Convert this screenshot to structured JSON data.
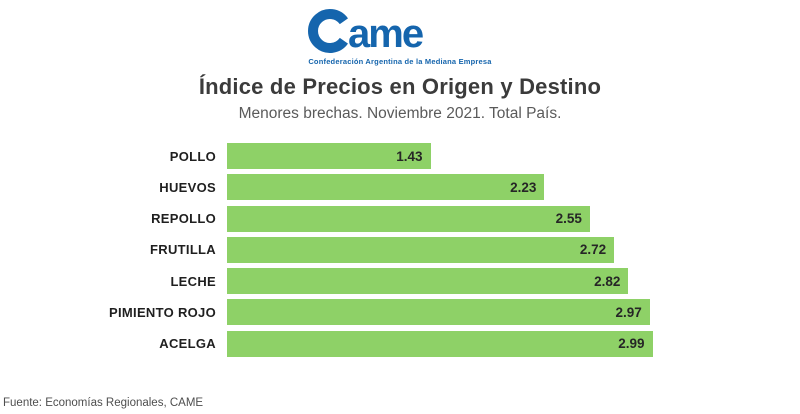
{
  "logo": {
    "wordmark": "Came",
    "wordmark_tail": "ame",
    "tagline": "Confederación Argentina de la Mediana Empresa",
    "color": "#1565ad"
  },
  "header": {
    "title": "Índice de Precios en Origen y Destino",
    "subtitle": "Menores brechas. Noviembre 2021. Total País."
  },
  "footer": {
    "source": "Fuente: Economías Regionales, CAME"
  },
  "chart_data": {
    "type": "bar",
    "orientation": "horizontal",
    "title": "Índice de Precios en Origen y Destino",
    "subtitle": "Menores brechas. Noviembre 2021. Total País.",
    "categories": [
      "POLLO",
      "HUEVOS",
      "REPOLLO",
      "FRUTILLA",
      "LECHE",
      "PIMIENTO ROJO",
      "ACELGA"
    ],
    "values": [
      1.43,
      2.23,
      2.55,
      2.72,
      2.82,
      2.97,
      2.99
    ],
    "xlim": [
      0,
      3.0
    ],
    "grid": false,
    "value_label_position": "inside-end",
    "bar_color": "#8ed167",
    "value_color": "#262626",
    "label_color": "#1f1f1f"
  }
}
